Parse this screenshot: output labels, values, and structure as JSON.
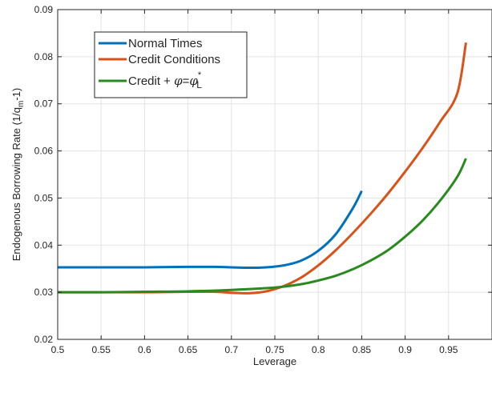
{
  "chart_data": {
    "type": "line",
    "xlabel": "Leverage",
    "ylabel_parts": {
      "main": "Endogenous Borrowing Rate (1/q",
      "sub": "m",
      "tail": "-1)"
    },
    "xlim": [
      0.5,
      1.0
    ],
    "ylim": [
      0.02,
      0.09
    ],
    "xticks": [
      0.5,
      0.55,
      0.6,
      0.65,
      0.7,
      0.75,
      0.8,
      0.85,
      0.9,
      0.95
    ],
    "xtick_labels": [
      "0.5",
      "0.55",
      "0.6",
      "0.65",
      "0.7",
      "0.75",
      "0.8",
      "0.85",
      "0.9",
      "0.95"
    ],
    "yticks": [
      0.02,
      0.03,
      0.04,
      0.05,
      0.06,
      0.07,
      0.08,
      0.09
    ],
    "ytick_labels": [
      "0.02",
      "0.03",
      "0.04",
      "0.05",
      "0.06",
      "0.07",
      "0.08",
      "0.09"
    ],
    "grid": true,
    "legend_position": "top-left",
    "series": [
      {
        "name": "Normal Times",
        "color": "#0072BD",
        "x": [
          0.5,
          0.55,
          0.6,
          0.65,
          0.68,
          0.7,
          0.72,
          0.74,
          0.76,
          0.78,
          0.8,
          0.82,
          0.84,
          0.85
        ],
        "y": [
          0.0353,
          0.0353,
          0.0353,
          0.0354,
          0.0354,
          0.0353,
          0.0352,
          0.0353,
          0.0357,
          0.0367,
          0.0388,
          0.0423,
          0.0479,
          0.0515
        ]
      },
      {
        "name": "Credit Conditions",
        "color": "#D95319",
        "x": [
          0.5,
          0.55,
          0.6,
          0.65,
          0.68,
          0.7,
          0.72,
          0.74,
          0.76,
          0.78,
          0.8,
          0.82,
          0.84,
          0.86,
          0.88,
          0.9,
          0.92,
          0.94,
          0.96,
          0.97
        ],
        "y": [
          0.03,
          0.03,
          0.03,
          0.0301,
          0.0301,
          0.0299,
          0.0298,
          0.0302,
          0.0313,
          0.0331,
          0.0357,
          0.0389,
          0.0426,
          0.0466,
          0.0509,
          0.0556,
          0.0606,
          0.0661,
          0.0722,
          0.083
        ]
      },
      {
        "name": "Credit + φ=φ*L",
        "legend_parts": {
          "prefix": "Credit + ",
          "phi1": "φ",
          "eq": "=",
          "phi2": "φ",
          "sup": "*",
          "sub": "L"
        },
        "color": "#2A8A1F",
        "x": [
          0.5,
          0.55,
          0.6,
          0.65,
          0.7,
          0.75,
          0.78,
          0.8,
          0.82,
          0.84,
          0.86,
          0.88,
          0.9,
          0.92,
          0.94,
          0.96,
          0.97
        ],
        "y": [
          0.03,
          0.03,
          0.0301,
          0.0302,
          0.0305,
          0.031,
          0.0317,
          0.0325,
          0.0335,
          0.0349,
          0.0367,
          0.0389,
          0.0418,
          0.0452,
          0.0494,
          0.0545,
          0.0584
        ]
      }
    ]
  }
}
